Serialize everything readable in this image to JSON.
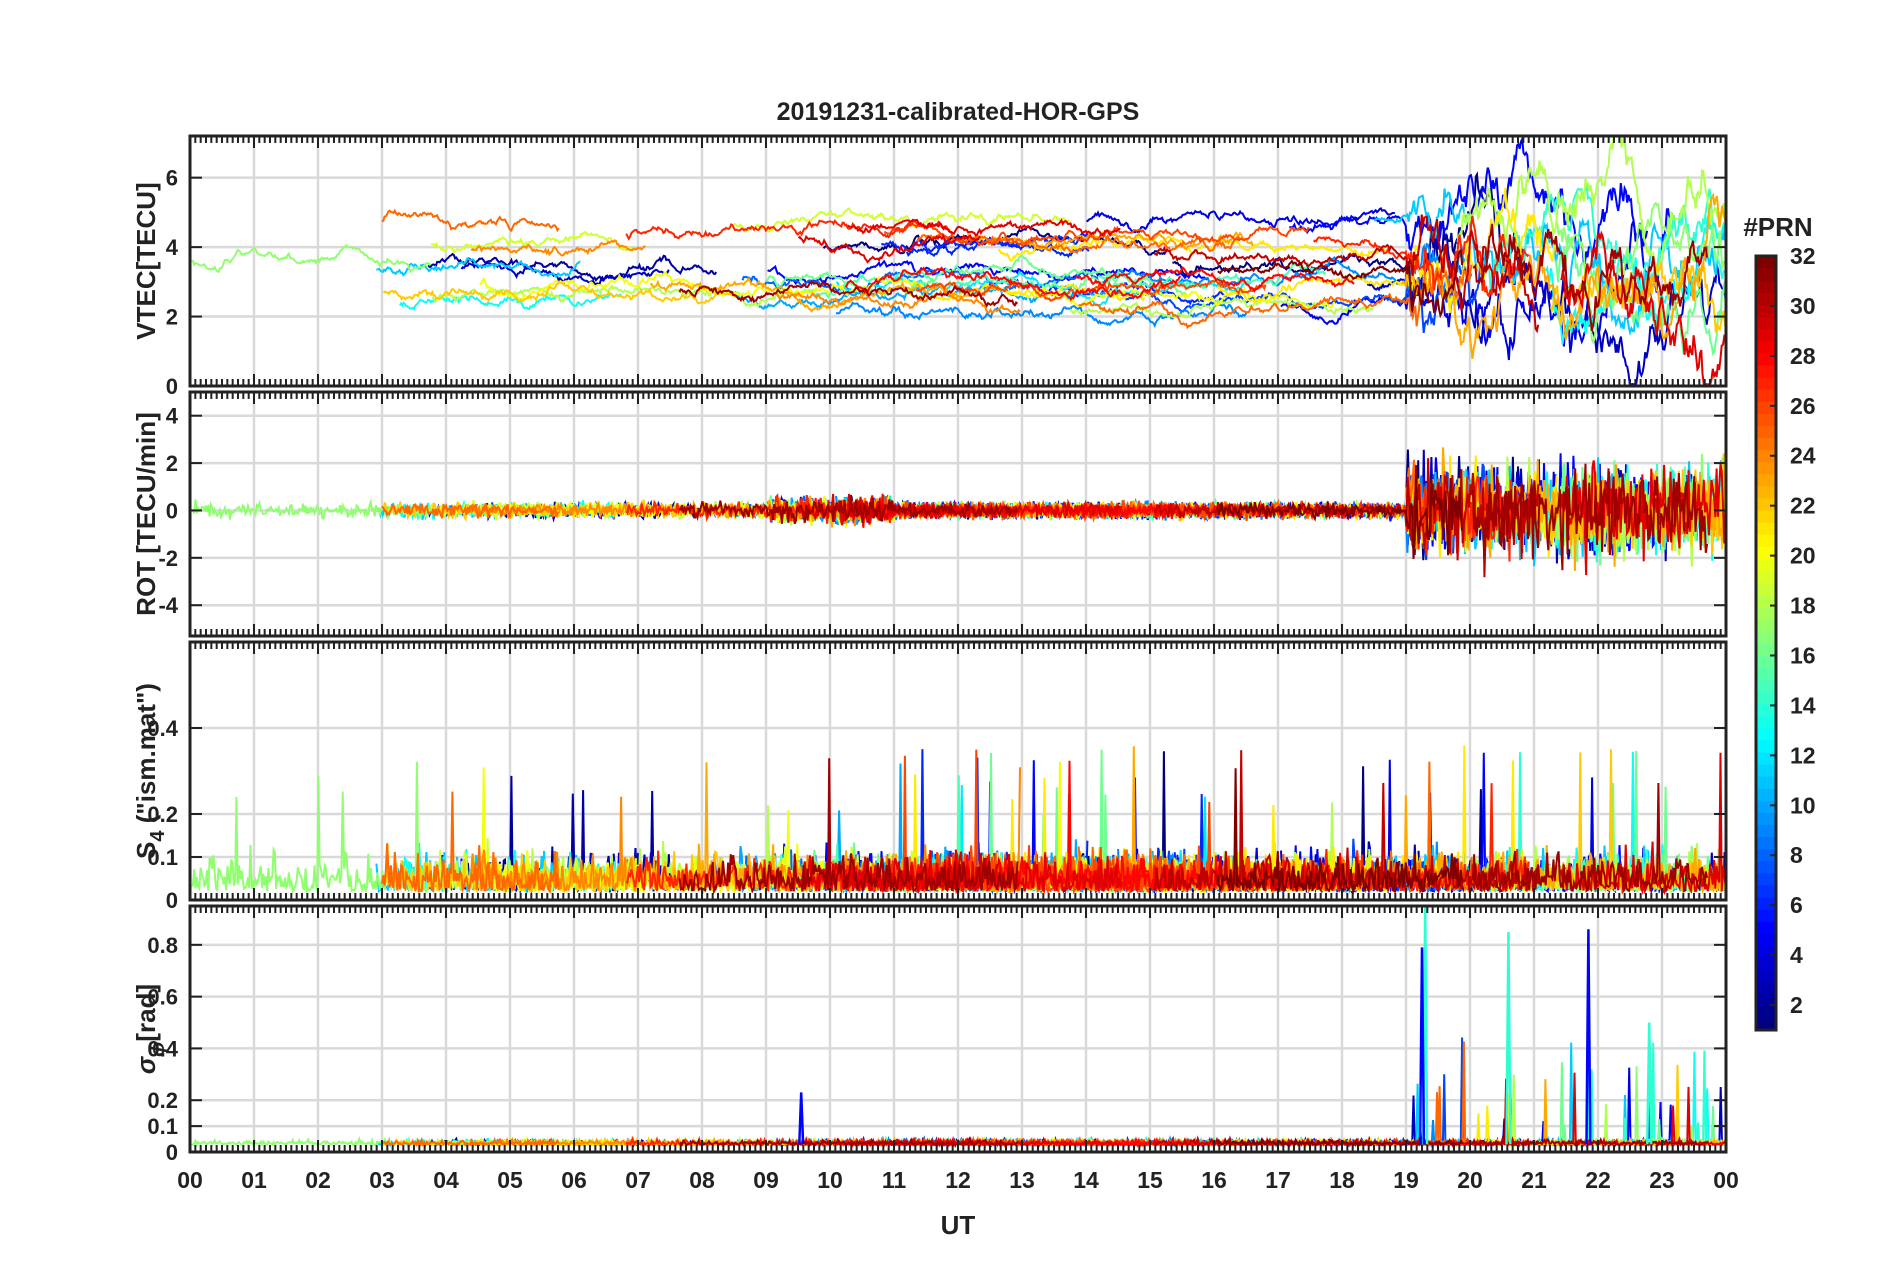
{
  "chart_data": {
    "type": "line",
    "title": "20191231-calibrated-HOR-GPS",
    "xlabel": "UT",
    "x_ticks": [
      "00",
      "01",
      "02",
      "03",
      "04",
      "05",
      "06",
      "07",
      "08",
      "09",
      "10",
      "11",
      "12",
      "13",
      "14",
      "15",
      "16",
      "17",
      "18",
      "19",
      "20",
      "21",
      "22",
      "23",
      "00"
    ],
    "x_range_hours": [
      0,
      24
    ],
    "grid": true,
    "colorbar": {
      "label": "#PRN",
      "range": [
        1,
        32
      ],
      "ticks": [
        "32",
        "30",
        "28",
        "26",
        "24",
        "22",
        "20",
        "18",
        "16",
        "14",
        "12",
        "10",
        "8",
        "6",
        "4",
        "2"
      ],
      "colormap": "jet"
    },
    "series_note": "one trace per GPS satellite PRN 1-32, coloured by PRN",
    "panels": [
      {
        "name": "vtec",
        "ylabel": "VTEC[TECU]",
        "ylim": [
          0,
          7.2
        ],
        "y_ticks": [
          0,
          2,
          4,
          6
        ],
        "y_tick_labels": [
          "0",
          "2",
          "4",
          "6"
        ],
        "typical_level": [
          1.5,
          5.5
        ],
        "activity_after_hour_19": "large fluctuations 0.5-7 TECU"
      },
      {
        "name": "rot",
        "ylabel": "ROT [TECU/min]",
        "ylim": [
          -5.3,
          5.0
        ],
        "y_ticks": [
          -4,
          -2,
          0,
          2,
          4
        ],
        "y_tick_labels": [
          "-4",
          "-2",
          "0",
          "2",
          "4"
        ],
        "quiet_amplitude": 0.3,
        "active_amplitude_after_hour_19": 4.0
      },
      {
        "name": "s4",
        "ylabel_main": "S",
        "ylabel_sub": "4",
        "ylabel_rest": " (\"ism.mat\")",
        "ylim": [
          0,
          0.6
        ],
        "y_ticks": [
          0,
          0.1,
          0.2,
          0.4
        ],
        "y_tick_labels": [
          "0",
          "0.1",
          "0.2",
          "0.4"
        ],
        "typical_level": [
          0.02,
          0.15
        ],
        "max_peak": 0.36
      },
      {
        "name": "sigma_phi",
        "ylabel_main": "σ",
        "ylabel_sub": "ϕ",
        "ylabel_rest": "[rad]",
        "ylim": [
          0,
          0.95
        ],
        "y_ticks": [
          0,
          0.1,
          0.2,
          0.4,
          0.6,
          0.8
        ],
        "y_tick_labels": [
          "0",
          "0.1",
          "0.2",
          "0.4",
          "0.6",
          "0.8"
        ],
        "typical_level": 0.04,
        "spikes": [
          {
            "hour": 19.3,
            "value": 0.95
          },
          {
            "hour": 19.25,
            "value": 0.79
          },
          {
            "hour": 20.6,
            "value": 0.85
          },
          {
            "hour": 21.85,
            "value": 0.86
          },
          {
            "hour": 22.8,
            "value": 0.5
          },
          {
            "hour": 9.55,
            "value": 0.23
          }
        ]
      }
    ]
  }
}
